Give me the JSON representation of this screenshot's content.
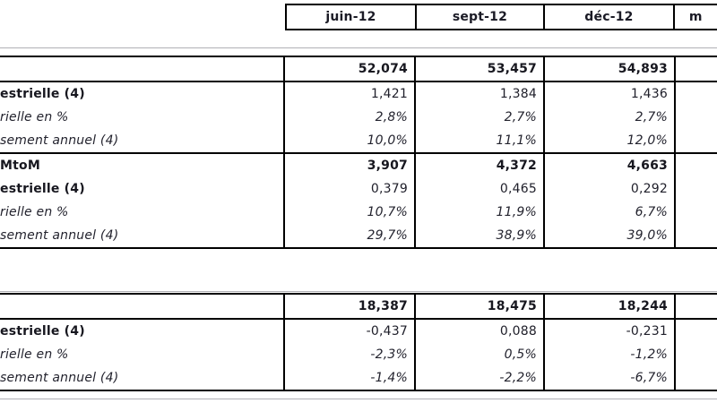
{
  "colors": {
    "border": "#000000",
    "grid_line": "#b0b0b5",
    "text": "#20202b"
  },
  "header": {
    "columns": [
      "juin-12",
      "sept-12",
      "déc-12",
      "m"
    ]
  },
  "table1": {
    "rows": [
      {
        "label": "",
        "style": "total",
        "values": [
          "52,074",
          "53,457",
          "54,893",
          ""
        ]
      },
      {
        "label": "estrielle (4)",
        "style": "boldlabel",
        "values": [
          "1,421",
          "1,384",
          "1,436",
          ""
        ]
      },
      {
        "label": "rielle en %",
        "style": "italic",
        "values": [
          "2,8%",
          "2,7%",
          "2,7%",
          ""
        ]
      },
      {
        "label": "sement annuel (4)",
        "style": "italic",
        "values": [
          "10,0%",
          "11,1%",
          "12,0%",
          ""
        ]
      },
      {
        "label": "MtoM",
        "style": "total",
        "values": [
          "3,907",
          "4,372",
          "4,663",
          ""
        ]
      },
      {
        "label": "estrielle (4)",
        "style": "boldlabel",
        "values": [
          "0,379",
          "0,465",
          "0,292",
          ""
        ]
      },
      {
        "label": "rielle en %",
        "style": "italic",
        "values": [
          "10,7%",
          "11,9%",
          "6,7%",
          ""
        ]
      },
      {
        "label": "sement annuel (4)",
        "style": "italic",
        "values": [
          "29,7%",
          "38,9%",
          "39,0%",
          ""
        ]
      }
    ]
  },
  "table2": {
    "rows": [
      {
        "label": "",
        "style": "total",
        "values": [
          "18,387",
          "18,475",
          "18,244",
          ""
        ]
      },
      {
        "label": "estrielle (4)",
        "style": "boldlabel",
        "values": [
          "-0,437",
          "0,088",
          "-0,231",
          ""
        ]
      },
      {
        "label": "rielle en %",
        "style": "italic",
        "values": [
          "-2,3%",
          "0,5%",
          "-1,2%",
          ""
        ]
      },
      {
        "label": "sement annuel (4)",
        "style": "italic",
        "values": [
          "-1,4%",
          "-2,2%",
          "-6,7%",
          ""
        ]
      }
    ]
  }
}
